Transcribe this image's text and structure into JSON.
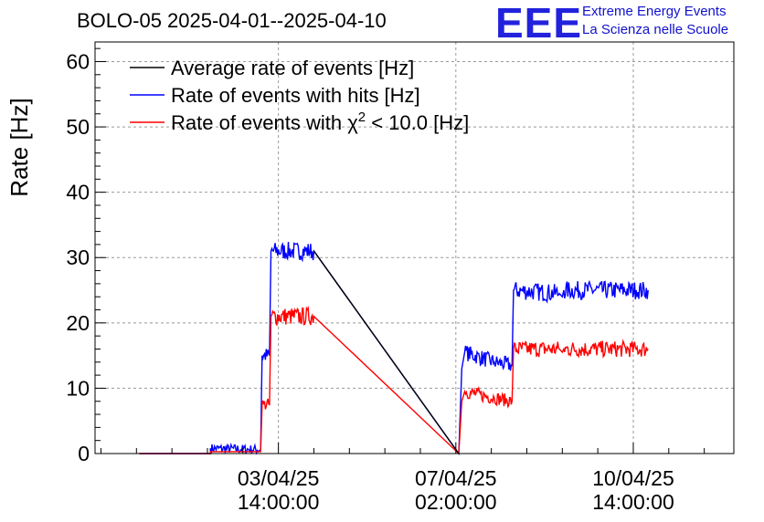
{
  "header": {
    "title": "BOLO-05 2025-04-01--2025-04-10",
    "logo_text": "EEE",
    "logo_line1": "Extreme Energy Events",
    "logo_line2": "La Scienza nelle Scuole"
  },
  "colors": {
    "average": "#000000",
    "hits": "#0000ff",
    "chi2": "#ff0000",
    "logo": "#2222dd",
    "grid": "#999999"
  },
  "chart_data": {
    "type": "line",
    "title": "BOLO-05 2025-04-01--2025-04-10",
    "ylabel": "Rate [Hz]",
    "ylim": [
      0,
      63
    ],
    "yticks": [
      0,
      10,
      20,
      30,
      40,
      50,
      60
    ],
    "xlim_hours": [
      0,
      216
    ],
    "xticks": [
      {
        "hour": 62,
        "date": "03/04/25",
        "time": "14:00:00"
      },
      {
        "hour": 122,
        "date": "07/04/25",
        "time": "02:00:00"
      },
      {
        "hour": 182,
        "date": "10/04/25",
        "time": "14:00:00"
      }
    ],
    "legend": {
      "position": "top-left",
      "entries": [
        {
          "key": "average",
          "prefix": "Average rate of events [Hz]",
          "sup": "",
          "suffix": ""
        },
        {
          "key": "hits",
          "prefix": "Rate of events with hits [Hz]",
          "sup": "",
          "suffix": ""
        },
        {
          "key": "chi2",
          "prefix": "Rate of events with χ",
          "sup": "2",
          "suffix": " < 10.0 [Hz]"
        }
      ]
    },
    "series": [
      {
        "key": "hits",
        "noise": 0.7,
        "points": [
          [
            15,
            0
          ],
          [
            39,
            0
          ],
          [
            39,
            0.8
          ],
          [
            56,
            0.6
          ],
          [
            56.5,
            15
          ],
          [
            59,
            15
          ],
          [
            59.5,
            31
          ],
          [
            74,
            31
          ],
          [
            123,
            0
          ],
          [
            124,
            13
          ],
          [
            125,
            15.5
          ],
          [
            135,
            14
          ],
          [
            141,
            13.5
          ],
          [
            141.5,
            25
          ],
          [
            157,
            24.5
          ],
          [
            158,
            24
          ],
          [
            158.5,
            25
          ],
          [
            183,
            25
          ],
          [
            187,
            25
          ]
        ]
      },
      {
        "key": "chi2",
        "noise": 0.7,
        "points": [
          [
            15,
            0
          ],
          [
            39,
            0
          ],
          [
            39,
            0.3
          ],
          [
            56,
            0.3
          ],
          [
            56.5,
            7.5
          ],
          [
            59,
            7.5
          ],
          [
            59.5,
            21
          ],
          [
            74,
            21
          ],
          [
            123,
            0
          ],
          [
            124,
            8
          ],
          [
            125,
            9.5
          ],
          [
            135,
            8.5
          ],
          [
            141,
            8
          ],
          [
            141.5,
            16
          ],
          [
            157,
            16
          ],
          [
            158,
            15.5
          ],
          [
            158.5,
            16
          ],
          [
            183,
            16
          ],
          [
            187,
            16
          ]
        ]
      },
      {
        "key": "average",
        "noise": 0,
        "points": [
          [
            74,
            31
          ],
          [
            123,
            0
          ]
        ]
      }
    ]
  }
}
